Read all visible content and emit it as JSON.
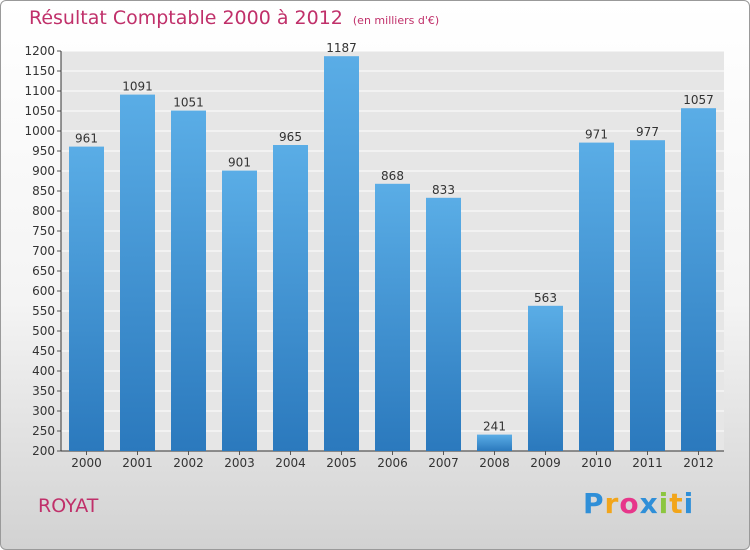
{
  "title": "Résultat Comptable 2000 à 2012",
  "subtitle": "(en milliers d'€)",
  "town": "ROYAT",
  "brand": {
    "text": "Proxiti",
    "letters": [
      "P",
      "r",
      "o",
      "x",
      "i",
      "t",
      "i"
    ],
    "colors": [
      "#2f8fd8",
      "#f2a51a",
      "#e7368a",
      "#2f8fd8",
      "#8cc63f",
      "#f2a51a",
      "#2f8fd8"
    ]
  },
  "colors": {
    "bar_top": "#5aade6",
    "bar_bottom": "#2b79bd",
    "title": "#c0306a"
  },
  "chart_data": {
    "type": "bar",
    "title": "Résultat Comptable 2000 à 2012",
    "xlabel": "",
    "ylabel": "",
    "categories": [
      "2000",
      "2001",
      "2002",
      "2003",
      "2004",
      "2005",
      "2006",
      "2007",
      "2008",
      "2009",
      "2010",
      "2011",
      "2012"
    ],
    "values": [
      961,
      1091,
      1051,
      901,
      965,
      1187,
      868,
      833,
      241,
      563,
      971,
      977,
      1057
    ],
    "ylim": [
      200,
      1200
    ],
    "yticks": [
      200,
      250,
      300,
      350,
      400,
      450,
      500,
      550,
      600,
      650,
      700,
      750,
      800,
      850,
      900,
      950,
      1000,
      1050,
      1100,
      1150,
      1200
    ],
    "grid": true
  }
}
